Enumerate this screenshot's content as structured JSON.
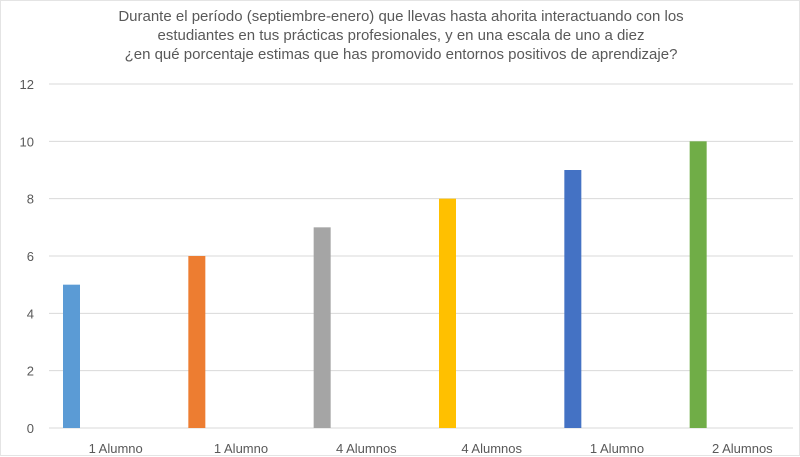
{
  "chart_data": {
    "type": "bar",
    "title_lines": [
      "Durante el período (septiembre-enero) que llevas hasta ahorita interactuando con los",
      "estudiantes en tus prácticas profesionales, y en una escala de uno a diez",
      "¿en qué porcentaje estimas que has promovido entornos positivos de aprendizaje?"
    ],
    "categories": [
      "1 Alumno",
      "1 Alumno",
      "4 Alumnos",
      "4 Alumnos",
      "1 Alumno",
      "2 Alumnos"
    ],
    "values": [
      5,
      6,
      7,
      8,
      9,
      10
    ],
    "colors": [
      "#5b9bd5",
      "#ed7d31",
      "#a5a5a5",
      "#ffc000",
      "#4472c4",
      "#70ad47"
    ],
    "ylim": [
      0,
      12
    ],
    "yticks": [
      0,
      2,
      4,
      6,
      8,
      10,
      12
    ],
    "grid": true,
    "gridColor": "#d9d9d9"
  }
}
